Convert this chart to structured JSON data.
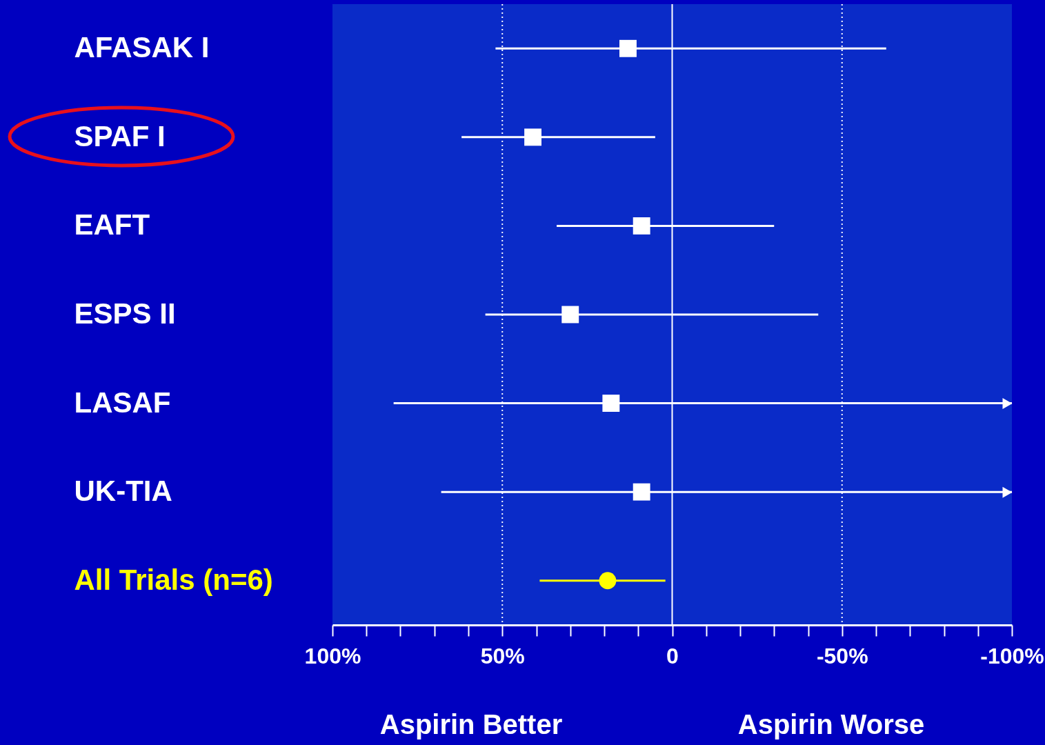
{
  "chart_data": {
    "type": "scatter",
    "orientation": "horizontal",
    "categories": [
      "AFASAK I",
      "SPAF I",
      "EAFT",
      "ESPS II",
      "LASAF",
      "UK-TIA",
      "All Trials (n=6)"
    ],
    "series": [
      {
        "color": "#ffffff",
        "marker": "square",
        "values": [
          13,
          41,
          9,
          30,
          18,
          9,
          null
        ],
        "errors": [
          [
            -63,
            52
          ],
          [
            5,
            62
          ],
          [
            -30,
            34
          ],
          [
            -43,
            55
          ],
          [
            -100,
            82
          ],
          [
            -100,
            68
          ],
          null
        ]
      },
      {
        "color": "#ffff00",
        "marker": "circle",
        "values": [
          null,
          null,
          null,
          null,
          null,
          null,
          19
        ],
        "errors": [
          null,
          null,
          null,
          null,
          null,
          null,
          [
            2,
            39
          ]
        ]
      }
    ],
    "xlim": [
      100,
      -100
    ],
    "xticks": [
      {
        "value": 100,
        "label": "100%"
      },
      {
        "value": 90,
        "label": null
      },
      {
        "value": 80,
        "label": null
      },
      {
        "value": 70,
        "label": null
      },
      {
        "value": 60,
        "label": null
      },
      {
        "value": 50,
        "label": "50%"
      },
      {
        "value": 40,
        "label": null
      },
      {
        "value": 30,
        "label": null
      },
      {
        "value": 20,
        "label": null
      },
      {
        "value": 10,
        "label": null
      },
      0,
      {
        "value": -10,
        "label": null
      },
      {
        "value": -20,
        "label": null
      },
      {
        "value": -30,
        "label": null
      },
      {
        "value": -40,
        "label": null
      },
      {
        "value": -50,
        "label": "-50%"
      },
      {
        "value": -60,
        "label": null
      },
      {
        "value": -70,
        "label": null
      },
      {
        "value": -80,
        "label": null
      },
      {
        "value": -90,
        "label": null
      },
      {
        "value": -100,
        "label": "-100%"
      }
    ],
    "ref_lines": [
      {
        "axis": "x",
        "value": 50,
        "color": "#ffffff",
        "line_style": "dotted"
      },
      {
        "axis": "x",
        "value": 0,
        "color": "#ffffff",
        "line_style": "solid"
      },
      {
        "axis": "x",
        "value": -50,
        "color": "#ffffff",
        "line_style": "dotted"
      }
    ],
    "annotations": [
      "Aspirin Better",
      "Aspirin Worse"
    ]
  }
}
